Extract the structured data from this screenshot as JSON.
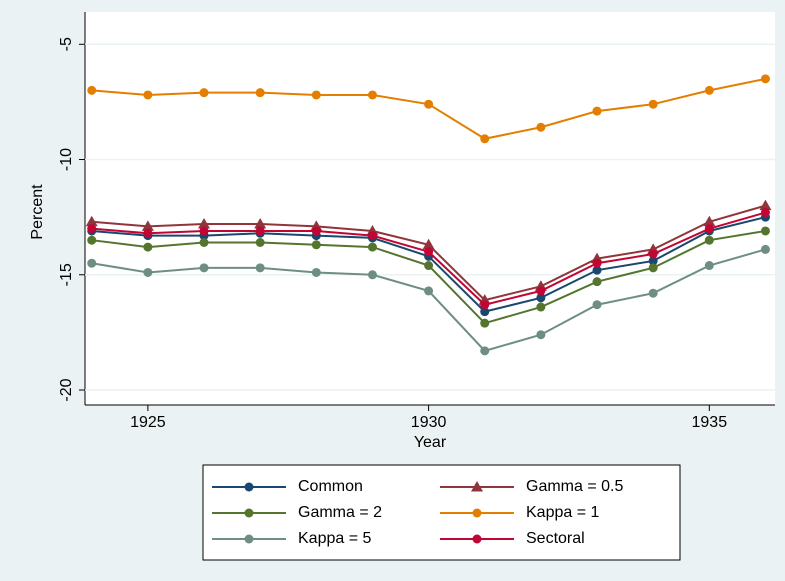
{
  "chart_data": {
    "type": "line",
    "x_label": "Year",
    "y_label": "Percent",
    "x": [
      1924,
      1925,
      1926,
      1927,
      1928,
      1929,
      1930,
      1931,
      1932,
      1933,
      1934,
      1935,
      1936
    ],
    "xlim": [
      1923.88,
      1936.17
    ],
    "xticks": [
      1925,
      1930,
      1935
    ],
    "ylim": [
      -20.65,
      -3.6
    ],
    "yticks": [
      -20,
      -15,
      -10,
      -5
    ],
    "grid": true,
    "series": [
      {
        "name": "Common",
        "color": "#1a476f",
        "marker": "circle",
        "values": [
          -13.1,
          -13.3,
          -13.3,
          -13.2,
          -13.3,
          -13.4,
          -14.2,
          -16.6,
          -16.0,
          -14.8,
          -14.4,
          -13.1,
          -12.5
        ]
      },
      {
        "name": "Gamma = 0.5",
        "color": "#90353b",
        "marker": "triangle",
        "values": [
          -12.7,
          -12.9,
          -12.8,
          -12.8,
          -12.9,
          -13.1,
          -13.7,
          -16.1,
          -15.5,
          -14.3,
          -13.9,
          -12.7,
          -12.0
        ]
      },
      {
        "name": "Gamma = 2",
        "color": "#55752f",
        "marker": "circle",
        "values": [
          -13.5,
          -13.8,
          -13.6,
          -13.6,
          -13.7,
          -13.8,
          -14.6,
          -17.1,
          -16.4,
          -15.3,
          -14.7,
          -13.5,
          -13.1
        ]
      },
      {
        "name": "Kappa = 1",
        "color": "#e37e00",
        "marker": "circle",
        "values": [
          -7.0,
          -7.2,
          -7.1,
          -7.1,
          -7.2,
          -7.2,
          -7.6,
          -9.1,
          -8.6,
          -7.9,
          -7.6,
          -7.0,
          -6.5
        ]
      },
      {
        "name": "Kappa = 5",
        "color": "#6e8e84",
        "marker": "circle",
        "values": [
          -14.5,
          -14.9,
          -14.7,
          -14.7,
          -14.9,
          -15.0,
          -15.7,
          -18.3,
          -17.6,
          -16.3,
          -15.8,
          -14.6,
          -13.9
        ]
      },
      {
        "name": "Sectoral",
        "color": "#c10534",
        "marker": "circle",
        "values": [
          -13.0,
          -13.2,
          -13.1,
          -13.1,
          -13.1,
          -13.3,
          -14.0,
          -16.3,
          -15.7,
          -14.5,
          -14.1,
          -13.0,
          -12.3
        ]
      }
    ]
  }
}
